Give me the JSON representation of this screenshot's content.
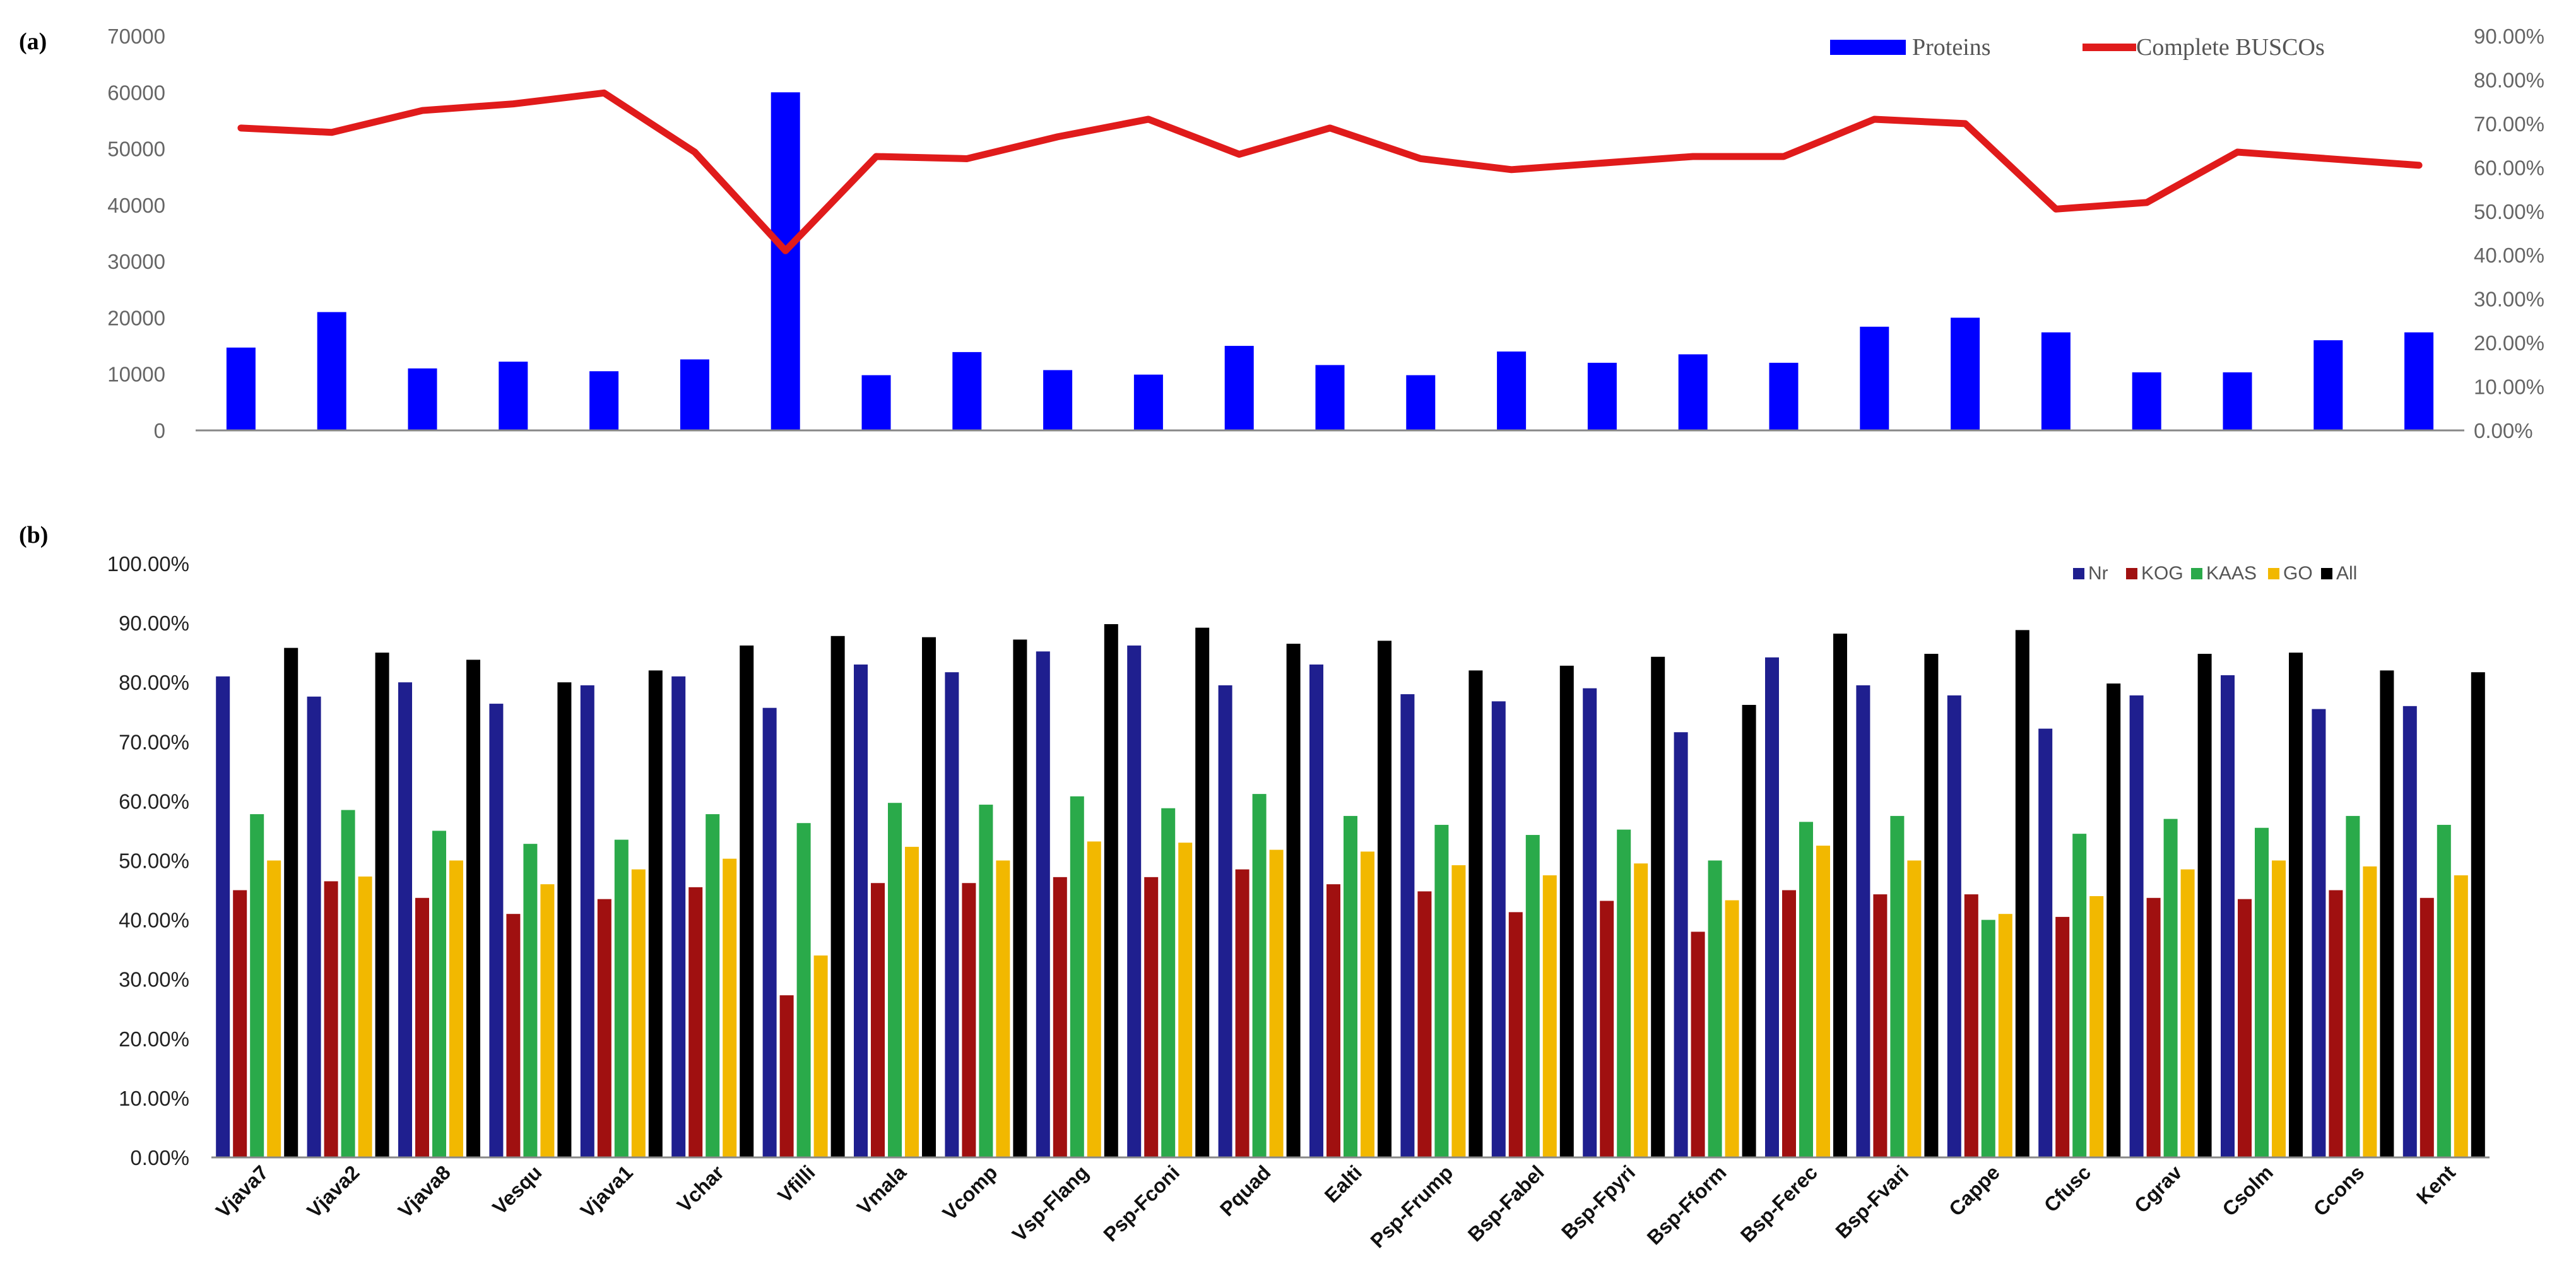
{
  "chart_data": [
    {
      "panel_label": "(a)",
      "type": "bar+line",
      "categories": [
        "Vjava7",
        "Vjava2",
        "Vjava8",
        "Vesqu",
        "Vjava1",
        "Vchar",
        "Vfilli",
        "Vmala",
        "Vcomp",
        "Vsp-Flang",
        "Psp-Fconi",
        "Pquad",
        "Ealti",
        "Psp-Frump",
        "Bsp-Fabel",
        "Bsp-Fpyri",
        "Bsp-Fform",
        "Bsp-Ferec",
        "Bsp-Fvari",
        "Cappe",
        "Cfusc",
        "Cgrav",
        "Csolm",
        "Ccons",
        "Kent"
      ],
      "series": [
        {
          "name": "Proteins",
          "type": "bar",
          "axis": "left",
          "color": "#0000ff",
          "values": [
            14700,
            21000,
            11000,
            12200,
            10500,
            12600,
            60000,
            9800,
            13900,
            10700,
            9900,
            15000,
            11600,
            9800,
            14000,
            12000,
            13500,
            12000,
            18400,
            20000,
            17400,
            10300,
            10300,
            16000,
            17400
          ]
        },
        {
          "name": "Complete BUSCOs",
          "type": "line",
          "axis": "right",
          "color": "#e01b1b",
          "values": [
            0.69,
            0.68,
            0.73,
            0.745,
            0.77,
            0.635,
            0.41,
            0.625,
            0.62,
            0.67,
            0.71,
            0.63,
            0.69,
            0.62,
            0.595,
            0.61,
            0.625,
            0.625,
            0.71,
            0.7,
            0.505,
            0.52,
            0.635,
            0.62,
            0.605
          ]
        }
      ],
      "y_left": {
        "ylim": [
          0,
          70000
        ],
        "ticks": [
          "0",
          "10000",
          "20000",
          "30000",
          "40000",
          "50000",
          "60000",
          "70000"
        ]
      },
      "y_right": {
        "ylim": [
          0,
          0.9
        ],
        "ticks": [
          "0.00%",
          "10.00%",
          "20.00%",
          "30.00%",
          "40.00%",
          "50.00%",
          "60.00%",
          "70.00%",
          "80.00%",
          "90.00%"
        ]
      },
      "legend_placement": "top-right",
      "grid": false
    },
    {
      "panel_label": "(b)",
      "type": "bar",
      "categories": [
        "Vjava7",
        "Vjava2",
        "Vjava8",
        "Vesqu",
        "Vjava1",
        "Vchar",
        "Vfilli",
        "Vmala",
        "Vcomp",
        "Vsp-Flang",
        "Psp-Fconi",
        "Pquad",
        "Ealti",
        "Psp-Frump",
        "Bsp-Fabel",
        "Bsp-Fpyri",
        "Bsp-Fform",
        "Bsp-Ferec",
        "Bsp-Fvari",
        "Cappe",
        "Cfusc",
        "Cgrav",
        "Csolm",
        "Ccons",
        "Kent"
      ],
      "series": [
        {
          "name": "Nr",
          "color": "#1f1f8f",
          "values": [
            0.81,
            0.776,
            0.8,
            0.764,
            0.795,
            0.81,
            0.757,
            0.83,
            0.817,
            0.852,
            0.862,
            0.795,
            0.83,
            0.78,
            0.768,
            0.79,
            0.716,
            0.842,
            0.795,
            0.778,
            0.722,
            0.778,
            0.812,
            0.755,
            0.76
          ]
        },
        {
          "name": "KOG",
          "color": "#a01010",
          "values": [
            0.45,
            0.465,
            0.437,
            0.41,
            0.435,
            0.455,
            0.273,
            0.462,
            0.462,
            0.472,
            0.472,
            0.485,
            0.46,
            0.448,
            0.413,
            0.432,
            0.38,
            0.45,
            0.443,
            0.443,
            0.405,
            0.437,
            0.435,
            0.45,
            0.437
          ]
        },
        {
          "name": "KAAS",
          "color": "#2aaa4a",
          "values": [
            0.578,
            0.585,
            0.55,
            0.528,
            0.535,
            0.578,
            0.563,
            0.597,
            0.594,
            0.608,
            0.588,
            0.612,
            0.575,
            0.56,
            0.543,
            0.552,
            0.5,
            0.565,
            0.575,
            0.4,
            0.545,
            0.57,
            0.555,
            0.575,
            0.56
          ]
        },
        {
          "name": "GO",
          "color": "#f2b800",
          "values": [
            0.5,
            0.473,
            0.5,
            0.46,
            0.485,
            0.503,
            0.34,
            0.523,
            0.5,
            0.532,
            0.53,
            0.518,
            0.515,
            0.492,
            0.475,
            0.495,
            0.433,
            0.525,
            0.5,
            0.41,
            0.44,
            0.485,
            0.5,
            0.49,
            0.475
          ]
        },
        {
          "name": "All",
          "color": "#000000",
          "values": [
            0.858,
            0.85,
            0.838,
            0.8,
            0.82,
            0.862,
            0.878,
            0.876,
            0.872,
            0.898,
            0.892,
            0.865,
            0.87,
            0.82,
            0.828,
            0.843,
            0.762,
            0.882,
            0.848,
            0.888,
            0.798,
            0.848,
            0.85,
            0.82,
            0.817
          ]
        }
      ],
      "y": {
        "ylim": [
          0,
          1.0
        ],
        "ticks": [
          "0.00%",
          "10.00%",
          "20.00%",
          "30.00%",
          "40.00%",
          "50.00%",
          "60.00%",
          "70.00%",
          "80.00%",
          "90.00%",
          "100.00%"
        ]
      },
      "legend_placement": "top-right",
      "grid": false
    }
  ]
}
